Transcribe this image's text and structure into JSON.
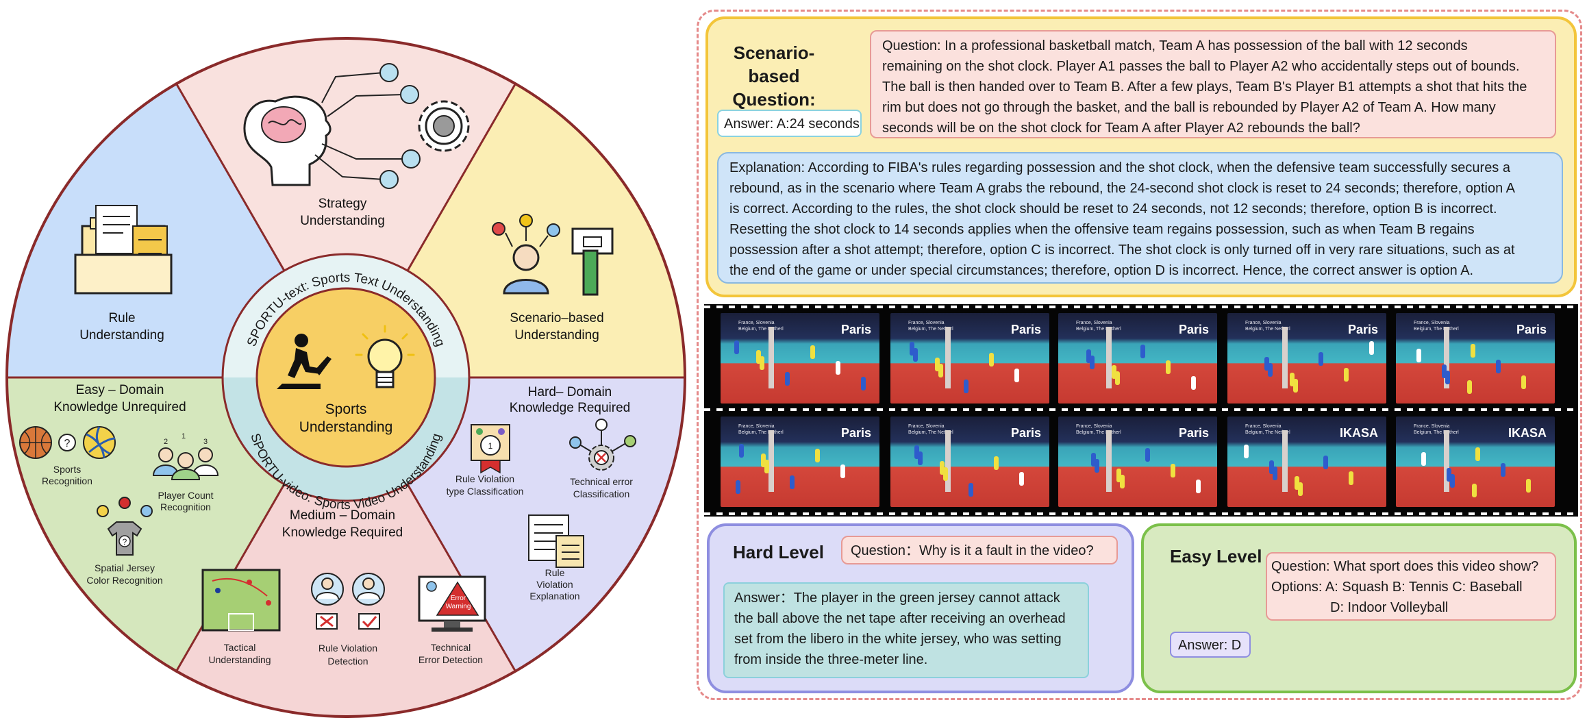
{
  "wheel": {
    "center_title": "Sports Understanding",
    "center_line1": "Sports",
    "center_line2": "Understanding",
    "ring_text_label": "SPORTU-text: Sports Text Understanding",
    "ring_video_label": "SPORTU-video: Sports Video Understanding",
    "sectors": {
      "strategy": {
        "line1": "Strategy",
        "line2": "Understanding"
      },
      "scenario": {
        "line1": "Scenario–based",
        "line2": "Understanding"
      },
      "rule": {
        "line1": "Rule",
        "line2": "Understanding"
      },
      "easy": {
        "line1": "Easy – Domain",
        "line2": "Knowledge Unrequired",
        "items": {
          "sports_rec": {
            "l1": "Sports",
            "l2": "Recognition"
          },
          "player_count": {
            "l1": "Player Count",
            "l2": "Recognition"
          },
          "jersey": {
            "l1": "Spatial Jersey",
            "l2": "Color Recognition"
          }
        }
      },
      "medium": {
        "line1": "Medium – Domain",
        "line2": "Knowledge Required",
        "items": {
          "tactical": {
            "l1": "Tactical",
            "l2": "Understanding"
          },
          "rule_violation": {
            "l1": "Rule Violation",
            "l2": "Detection"
          },
          "tech_error": {
            "l1": "Technical",
            "l2": "Error Detection"
          },
          "warning_text1": "Error",
          "warning_text2": "Warning"
        }
      },
      "hard": {
        "line1": "Hard– Domain",
        "line2": "Knowledge Required",
        "items": {
          "rv_type": {
            "l1": "Rule Violation",
            "l2": "type Classification"
          },
          "tech_class": {
            "l1": "Technical error",
            "l2": "Classification"
          },
          "rv_expl": {
            "l1": "Rule",
            "l2": "Violation",
            "l3": "Explanation"
          }
        }
      }
    }
  },
  "scenario_panel": {
    "title_line1": "Scenario-based",
    "title_line2": "Question:",
    "question_lines": [
      "Question: In a professional basketball match, Team A has possession of the ball with 12 seconds",
      "remaining on the shot clock. Player A1 passes the ball to Player A2 who accidentally steps out of bounds.",
      "The ball is then handed over to Team B. After a few plays, Team B's Player B1 attempts a shot that hits the",
      "rim but does not go through the basket, and the ball is rebounded by Player A2 of Team A. How many",
      "seconds will be on the shot clock for Team A after Player A2 rebounds the ball?"
    ],
    "answer": "Answer: A:24 seconds",
    "explanation_lines": [
      "Explanation: According to FIBA's rules regarding possession and the shot clock, when the defensive team successfully secures a",
      "rebound, as in the scenario where Team A grabs the rebound, the 24-second shot clock is reset to 24 seconds; therefore, option A",
      "is correct. According to the rules, the shot clock should be reset to 24 seconds, not 12 seconds; therefore, option B is incorrect.",
      "Resetting the shot clock to 14 seconds applies when the offensive team regains possession, such as when Team B regains",
      "possession after a shot attempt; therefore, option C is incorrect. The shot clock is only turned off in very rare situations, such as at",
      "the end of the game or under special circumstances; therefore, option D is incorrect. Hence, the correct answer is option A."
    ]
  },
  "film": {
    "banner_text": "Paris",
    "caption_line1": "France, Slovenia",
    "caption_line2": "Belgium, The Netherl",
    "sponsor_text": "IKASA"
  },
  "hard_panel": {
    "title": "Hard Level",
    "question": "Question：Why is it a fault in the video?",
    "answer_lines": [
      "Answer：The player in the green jersey cannot attack",
      "the ball above the net tape after receiving an overhead",
      "set from the libero in the white jersey, who was setting",
      "from inside the three-meter line."
    ]
  },
  "easy_panel": {
    "title": "Easy Level",
    "question": "Question: What sport does this video show?",
    "options_line1": "Options:  A: Squash    B: Tennis    C: Baseball",
    "options_line2": "D: Indoor Volleyball",
    "answer": "Answer: D"
  },
  "colors": {
    "sector_strategy": "#f9e1de",
    "sector_scenario": "#fbeeb4",
    "sector_rule": "#c8defa",
    "sector_easy": "#d5e7bd",
    "sector_medium": "#f5d5d5",
    "sector_hard": "#dcdcf7",
    "ring_top": "#e6f3f4",
    "ring_bottom": "#c3e3e6",
    "center": "#f7cf64",
    "outline": "#8a2a2a"
  }
}
